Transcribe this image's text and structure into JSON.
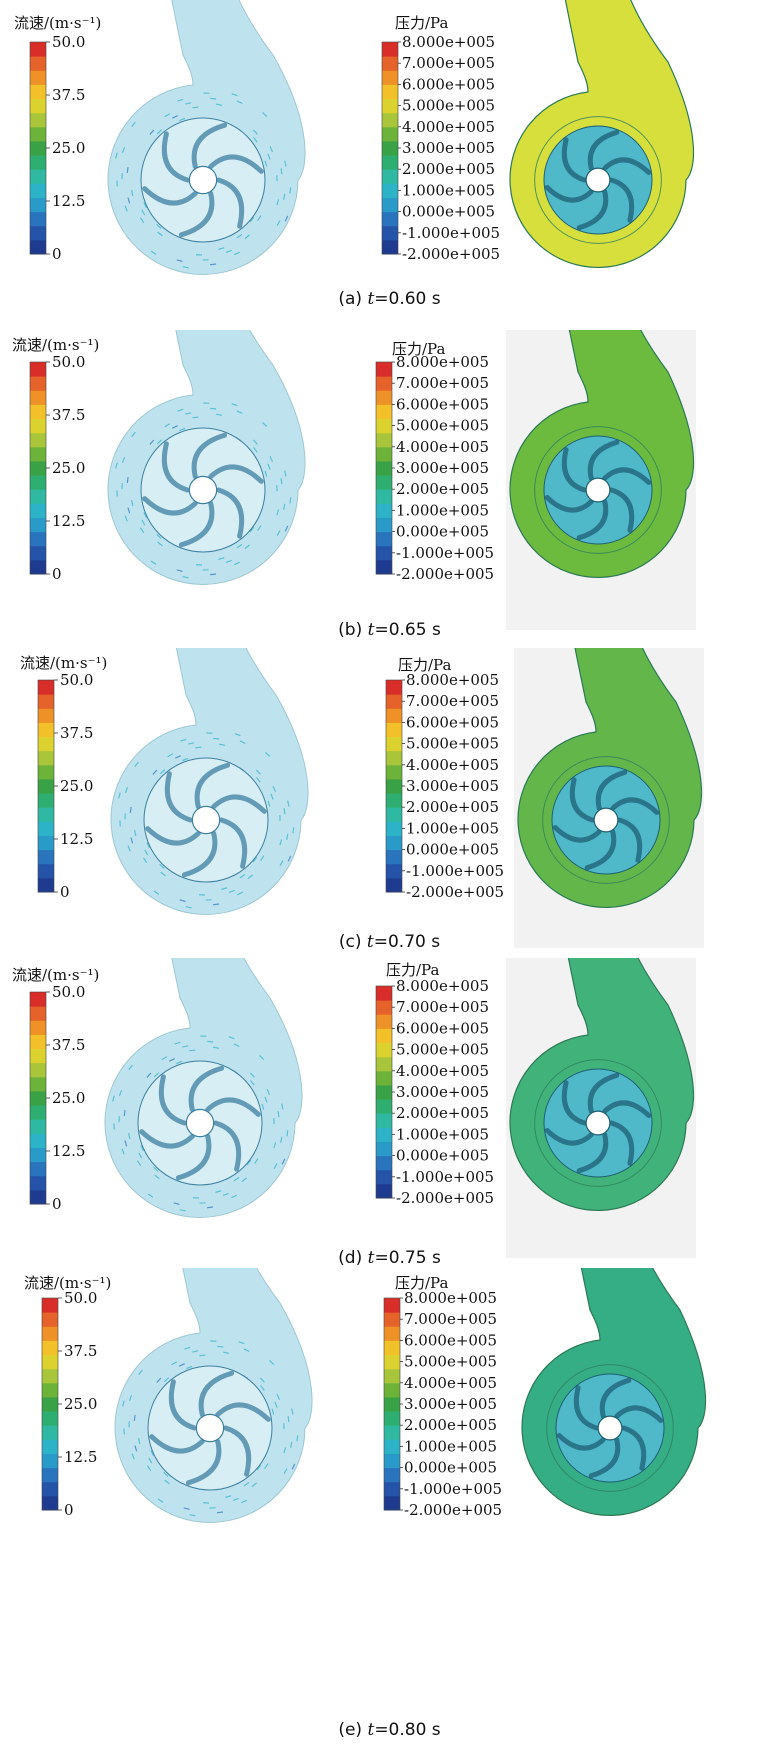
{
  "legend_velocity": {
    "title": "流速/(m·s⁻¹)",
    "ticks": [
      "50.0",
      "37.5",
      "25.0",
      "12.5",
      "0"
    ]
  },
  "legend_pressure": {
    "title": "压力/Pa",
    "ticks": [
      "8.000e+005",
      "7.000e+005",
      "6.000e+005",
      "5.000e+005",
      "4.000e+005",
      "3.000e+005",
      "2.000e+005",
      "1.000e+005",
      "0.000e+005",
      "-1.000e+005",
      "-2.000e+005"
    ]
  },
  "colormap": [
    "#1f3b8f",
    "#2553a8",
    "#2a74bd",
    "#2a9ac9",
    "#2db3c7",
    "#2fb9a2",
    "#2fae72",
    "#3aa246",
    "#6db33a",
    "#a9c63a",
    "#dcd22f",
    "#f2c12a",
    "#ee9228",
    "#e5622a",
    "#d92d2a"
  ],
  "panels": [
    {
      "id": "a",
      "label": "(a)",
      "t": "t",
      "time": "=0.60 s"
    },
    {
      "id": "b",
      "label": "(b)",
      "t": "t",
      "time": "=0.65 s"
    },
    {
      "id": "c",
      "label": "(c)",
      "t": "t",
      "time": "=0.70 s"
    },
    {
      "id": "d",
      "label": "(d)",
      "t": "t",
      "time": "=0.75 s"
    },
    {
      "id": "e",
      "label": "(e)",
      "t": "t",
      "time": "=0.80 s"
    }
  ],
  "pump_colors": {
    "velocity_field": "#bfe3ee",
    "pressure_a": "#d6df3c",
    "pressure_b": "#6dbb3e",
    "pressure_c": "#63b74a",
    "pressure_d": "#41b37a",
    "pressure_e": "#35ad85",
    "impeller": "#4fb9c9"
  }
}
